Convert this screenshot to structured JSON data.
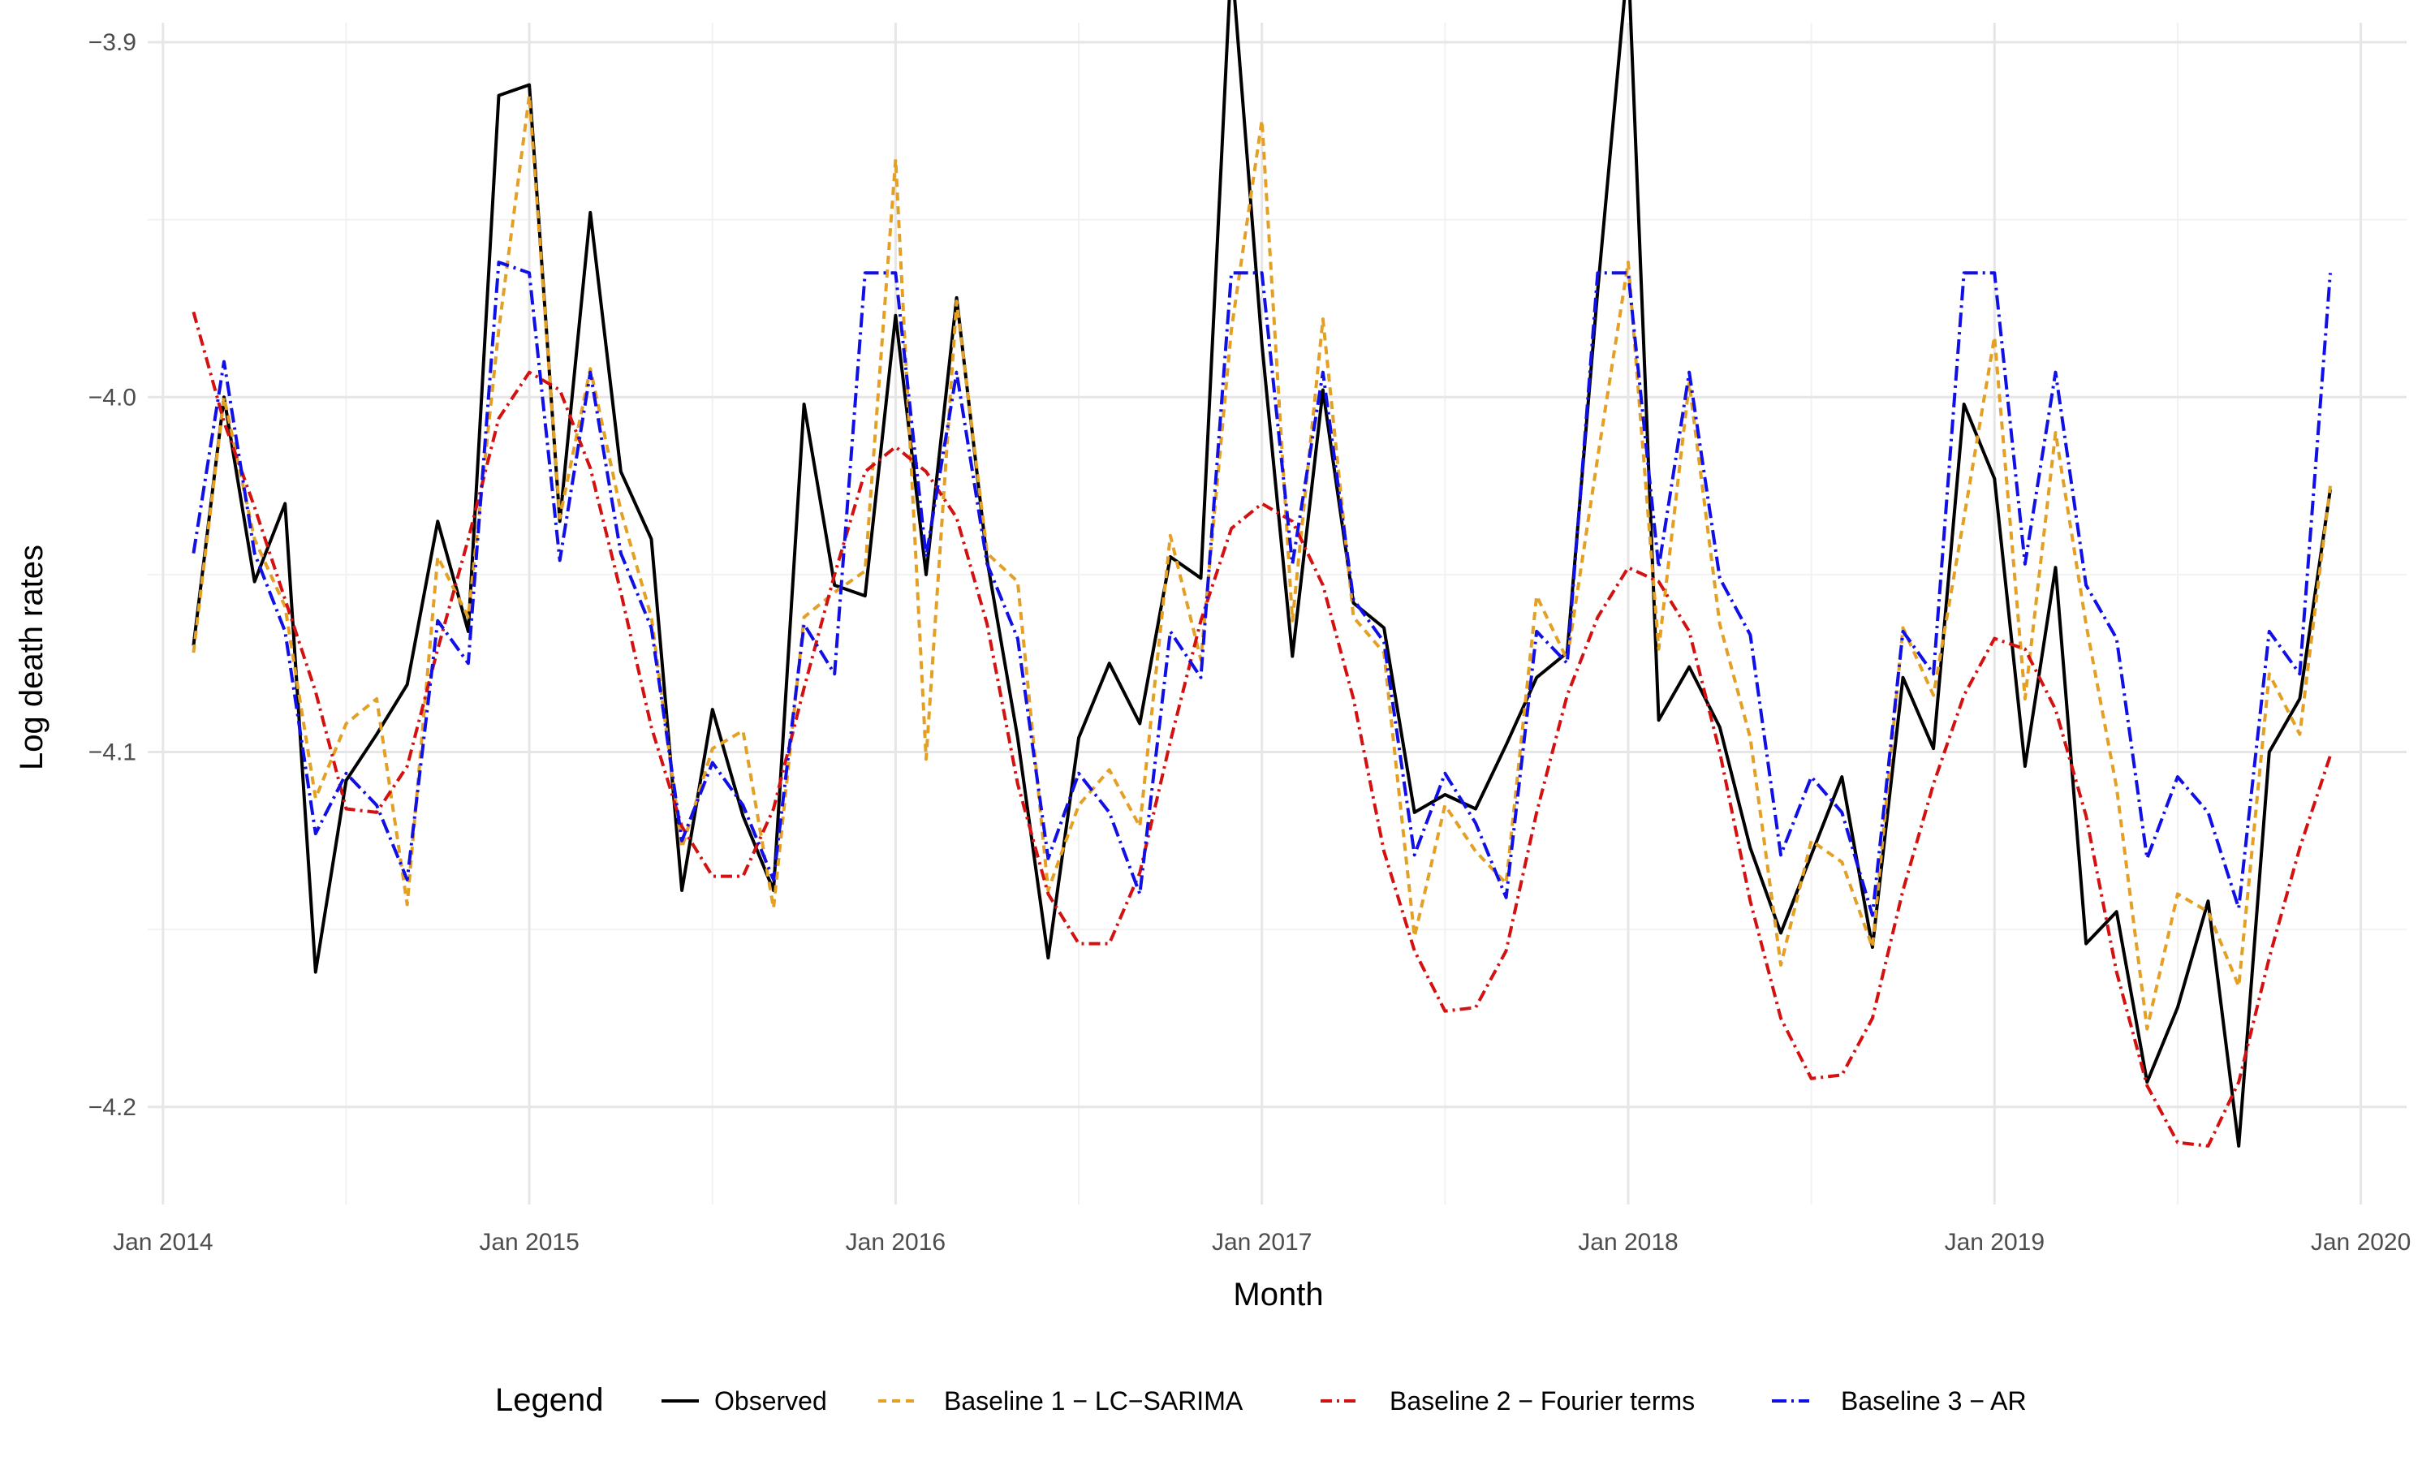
{
  "chart_data": {
    "type": "line",
    "title": "",
    "xlabel": "Month",
    "ylabel": "Log death rates",
    "x_start": "2014-02",
    "months": 71,
    "xlim_months": [
      -1.5,
      72.5
    ],
    "ylim": [
      -4.2275,
      -3.8945
    ],
    "y_ticks": [
      -3.9,
      -4.0,
      -4.1,
      -4.2
    ],
    "y_tick_labels": [
      "−3.9",
      "−4.0",
      "−4.1",
      "−4.2"
    ],
    "x_ticks": [
      -1,
      11,
      23,
      35,
      47,
      59,
      71
    ],
    "x_tick_labels": [
      "Jan 2014",
      "Jan 2015",
      "Jan 2016",
      "Jan 2017",
      "Jan 2018",
      "Jan 2019",
      "Jan 2020"
    ],
    "grid": true,
    "legend": {
      "title": "Legend",
      "position": "bottom"
    },
    "series": [
      {
        "name": "Observed",
        "color": "#000000",
        "dash": "solid",
        "values": [
          -4.07,
          -4.0,
          -4.052,
          -4.03,
          -4.162,
          -4.108,
          -4.095,
          -4.081,
          -4.035,
          -4.066,
          -3.915,
          -3.912,
          -4.035,
          -3.948,
          -4.021,
          -4.04,
          -4.139,
          -4.088,
          -4.118,
          -4.139,
          -4.002,
          -4.053,
          -4.056,
          -3.977,
          -4.05,
          -3.972,
          -4.046,
          -4.096,
          -4.158,
          -4.096,
          -4.075,
          -4.092,
          -4.045,
          -4.051,
          -3.876,
          -3.985,
          -4.073,
          -3.998,
          -4.058,
          -4.065,
          -4.117,
          -4.112,
          -4.116,
          -4.098,
          -4.079,
          -4.072,
          -3.97,
          -3.876,
          -4.091,
          -4.076,
          -4.093,
          -4.127,
          -4.151,
          -4.129,
          -4.107,
          -4.155,
          -4.079,
          -4.099,
          -4.002,
          -4.023,
          -4.104,
          -4.048,
          -4.154,
          -4.145,
          -4.193,
          -4.172,
          -4.142,
          -4.211,
          -4.1,
          -4.085,
          -4.026
        ]
      },
      {
        "name": "Baseline 1 − LC−SARIMA",
        "color": "#E3A024",
        "dash": "10,7",
        "values": [
          -4.072,
          -4.0,
          -4.04,
          -4.059,
          -4.113,
          -4.092,
          -4.085,
          -4.143,
          -4.045,
          -4.062,
          -3.981,
          -3.915,
          -4.034,
          -3.992,
          -4.032,
          -4.062,
          -4.127,
          -4.099,
          -4.094,
          -4.144,
          -4.062,
          -4.055,
          -4.049,
          -3.933,
          -4.102,
          -3.973,
          -4.044,
          -4.052,
          -4.139,
          -4.115,
          -4.105,
          -4.121,
          -4.039,
          -4.074,
          -3.981,
          -3.922,
          -4.063,
          -3.978,
          -4.062,
          -4.072,
          -4.152,
          -4.115,
          -4.128,
          -4.137,
          -4.056,
          -4.074,
          -4.017,
          -3.962,
          -4.071,
          -3.996,
          -4.064,
          -4.096,
          -4.16,
          -4.125,
          -4.131,
          -4.155,
          -4.065,
          -4.084,
          -4.034,
          -3.983,
          -4.085,
          -4.01,
          -4.064,
          -4.11,
          -4.178,
          -4.14,
          -4.145,
          -4.166,
          -4.078,
          -4.095,
          -4.025
        ]
      },
      {
        "name": "Baseline 2 − Fourier terms",
        "color": "#D41111",
        "dash": "14,6,3,6",
        "values": [
          -3.976,
          -4.007,
          -4.031,
          -4.057,
          -4.083,
          -4.116,
          -4.117,
          -4.104,
          -4.071,
          -4.04,
          -4.006,
          -3.993,
          -3.998,
          -4.02,
          -4.055,
          -4.093,
          -4.121,
          -4.135,
          -4.135,
          -4.116,
          -4.082,
          -4.05,
          -4.021,
          -4.014,
          -4.021,
          -4.034,
          -4.064,
          -4.109,
          -4.14,
          -4.154,
          -4.154,
          -4.134,
          -4.097,
          -4.063,
          -4.037,
          -4.03,
          -4.035,
          -4.053,
          -4.085,
          -4.128,
          -4.156,
          -4.173,
          -4.172,
          -4.156,
          -4.117,
          -4.084,
          -4.062,
          -4.048,
          -4.052,
          -4.066,
          -4.1,
          -4.142,
          -4.175,
          -4.192,
          -4.191,
          -4.175,
          -4.139,
          -4.109,
          -4.084,
          -4.068,
          -4.071,
          -4.088,
          -4.118,
          -4.162,
          -4.194,
          -4.21,
          -4.211,
          -4.193,
          -4.158,
          -4.127,
          -4.101
        ]
      },
      {
        "name": "Baseline 3 − AR",
        "color": "#1010E6",
        "dash": "18,6,3,6",
        "values": [
          -4.044,
          -3.99,
          -4.044,
          -4.066,
          -4.123,
          -4.106,
          -4.115,
          -4.136,
          -4.063,
          -4.075,
          -3.962,
          -3.965,
          -4.046,
          -3.993,
          -4.044,
          -4.065,
          -4.125,
          -4.103,
          -4.115,
          -4.136,
          -4.064,
          -4.078,
          -3.965,
          -3.965,
          -4.045,
          -3.993,
          -4.047,
          -4.068,
          -4.13,
          -4.106,
          -4.117,
          -4.14,
          -4.066,
          -4.079,
          -3.965,
          -3.965,
          -4.047,
          -3.993,
          -4.057,
          -4.069,
          -4.129,
          -4.106,
          -4.12,
          -4.141,
          -4.066,
          -4.075,
          -3.965,
          -3.965,
          -4.048,
          -3.993,
          -4.051,
          -4.067,
          -4.129,
          -4.107,
          -4.117,
          -4.146,
          -4.066,
          -4.078,
          -3.965,
          -3.965,
          -4.047,
          -3.993,
          -4.053,
          -4.068,
          -4.13,
          -4.107,
          -4.117,
          -4.144,
          -4.066,
          -4.078,
          -3.965
        ]
      }
    ]
  }
}
